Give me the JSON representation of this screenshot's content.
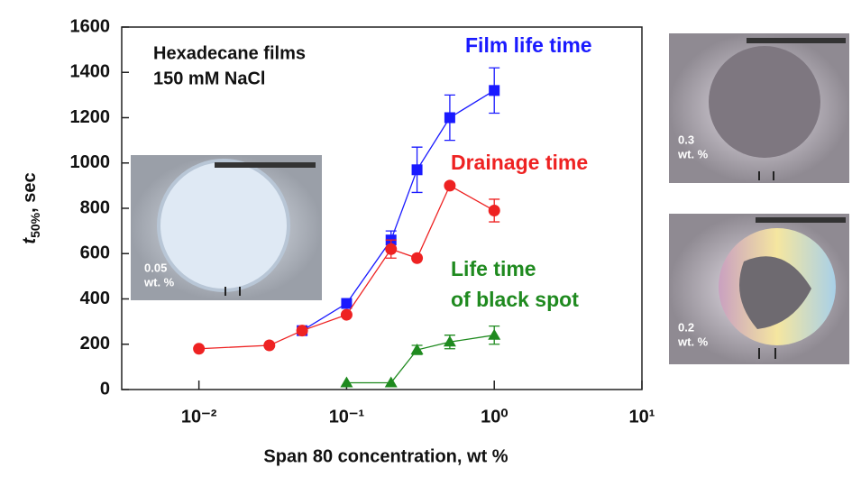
{
  "chart_data": {
    "type": "line",
    "annotations": [
      "Hexadecane films",
      "150 mM NaCl"
    ],
    "xlabel": "Span 80 concentration, wt %",
    "ylabel": {
      "symbol": "t",
      "subscript": "50%",
      "unit": ", sec"
    },
    "xscale": "log",
    "xlim": [
      0.003,
      10
    ],
    "ylim": [
      0,
      1600
    ],
    "xticks": [
      {
        "value": 0.01,
        "label": "10⁻²"
      },
      {
        "value": 0.1,
        "label": "10⁻¹"
      },
      {
        "value": 1,
        "label": "10⁰"
      },
      {
        "value": 10,
        "label": "10¹"
      }
    ],
    "yticks": [
      0,
      200,
      400,
      600,
      800,
      1000,
      1200,
      1400,
      1600
    ],
    "series": [
      {
        "name": [
          "Film life time"
        ],
        "color": "#1a1aff",
        "marker": "square",
        "x": [
          0.05,
          0.1,
          0.2,
          0.3,
          0.5,
          1.0
        ],
        "values": [
          260,
          380,
          660,
          970,
          1200,
          1320
        ],
        "errors": [
          null,
          null,
          40,
          100,
          100,
          100
        ]
      },
      {
        "name": [
          "Drainage time"
        ],
        "color": "#ee2222",
        "marker": "circle",
        "x": [
          0.01,
          0.03,
          0.05,
          0.1,
          0.2,
          0.3,
          0.5,
          1.0
        ],
        "values": [
          180,
          195,
          260,
          330,
          620,
          580,
          900,
          790
        ],
        "errors": [
          null,
          null,
          null,
          null,
          40,
          null,
          null,
          50
        ]
      },
      {
        "name": [
          "Life time",
          "of black spot"
        ],
        "color": "#1f8a1f",
        "marker": "triangle",
        "x": [
          0.1,
          0.2,
          0.3,
          0.5,
          1.0
        ],
        "values": [
          30,
          30,
          175,
          210,
          240
        ],
        "errors": [
          null,
          null,
          20,
          30,
          40
        ]
      }
    ],
    "insets": [
      {
        "label": [
          "0.05",
          "wt. %"
        ]
      },
      {
        "label": [
          "0.3",
          "wt. %"
        ]
      },
      {
        "label": [
          "0.2",
          "wt. %"
        ]
      }
    ]
  }
}
